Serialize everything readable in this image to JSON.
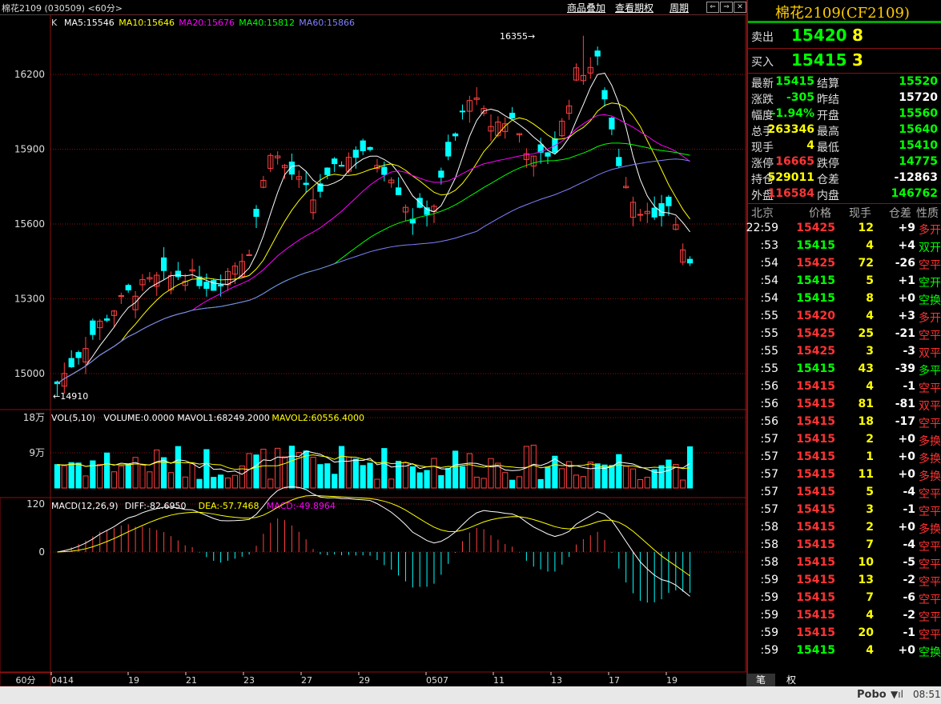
{
  "header": {
    "title": "棉花2109 (030509) <60分>",
    "btns": [
      "商品叠加",
      "查看期权",
      "周期"
    ]
  },
  "kline": {
    "ma_label": "K",
    "ma": [
      {
        "t": "MA5:15546",
        "c": "#ffffff"
      },
      {
        "t": "MA10:15646",
        "c": "#ffff00"
      },
      {
        "t": "MA20:15676",
        "c": "#ff00ff"
      },
      {
        "t": "MA40:15812",
        "c": "#00ff00"
      },
      {
        "t": "MA60:15866",
        "c": "#8080ff"
      }
    ],
    "high_label": "16355",
    "low_label": "14910",
    "y_ticks": [
      "16200",
      "15900",
      "15600",
      "15300",
      "15000"
    ]
  },
  "vol": {
    "legend": [
      {
        "t": "VOL(5,10)",
        "c": "#ffffff"
      },
      {
        "t": "VOLUME:0.0000",
        "c": "#ffffff"
      },
      {
        "t": "MAVOL1:68249.2000",
        "c": "#ffffff"
      },
      {
        "t": "MAVOL2:60556.4000",
        "c": "#ffff00"
      }
    ],
    "y_ticks": [
      "18万",
      "9万"
    ]
  },
  "macd": {
    "legend": [
      {
        "t": "MACD(12,26,9)",
        "c": "#ffffff"
      },
      {
        "t": "DIFF:-82.6950",
        "c": "#ffffff"
      },
      {
        "t": "DEA:-57.7468",
        "c": "#ffff00"
      },
      {
        "t": "MACD:-49.8964",
        "c": "#ff00ff"
      }
    ],
    "y_ticks": [
      "120",
      "0"
    ]
  },
  "x_axis": {
    "period": "60分",
    "labels": [
      "0414",
      "19",
      "21",
      "23",
      "27",
      "29",
      "0507",
      "11",
      "13",
      "17",
      "19"
    ]
  },
  "chart_data": {
    "type": "candlestick",
    "title": "棉花2109",
    "y_range": [
      14910,
      16355
    ],
    "high": 16355,
    "low": 14910,
    "last": 15415
  },
  "quote": {
    "name": "棉花2109(CF2109)",
    "sell": {
      "label": "卖出",
      "price": "15420",
      "vol": "8"
    },
    "buy": {
      "label": "买入",
      "price": "15415",
      "vol": "3"
    },
    "stats": [
      {
        "l1": "最新",
        "v1": "15415",
        "c1": "#00ff00",
        "l2": "结算",
        "v2": "15520",
        "c2": "#00ff00"
      },
      {
        "l1": "涨跌",
        "v1": "-305",
        "c1": "#00ff00",
        "l2": "昨结",
        "v2": "15720",
        "c2": "#ffffff"
      },
      {
        "l1": "幅度",
        "v1": "-1.94%",
        "c1": "#00ff00",
        "l2": "开盘",
        "v2": "15560",
        "c2": "#00ff00"
      },
      {
        "l1": "总手",
        "v1": "263346",
        "c1": "#ffff00",
        "l2": "最高",
        "v2": "15640",
        "c2": "#00ff00"
      },
      {
        "l1": "现手",
        "v1": "4",
        "c1": "#ffff00",
        "l2": "最低",
        "v2": "15410",
        "c2": "#00ff00"
      },
      {
        "l1": "涨停",
        "v1": "16665",
        "c1": "#ff3333",
        "l2": "跌停",
        "v2": "14775",
        "c2": "#00ff00"
      },
      {
        "l1": "持仓",
        "v1": "529011",
        "c1": "#ffff00",
        "l2": "仓差",
        "v2": "-12863",
        "c2": "#ffffff"
      },
      {
        "l1": "外盘",
        "v1": "116584",
        "c1": "#ff3333",
        "l2": "内盘",
        "v2": "146762",
        "c2": "#00ff00"
      }
    ],
    "tick_header": [
      "北京",
      "价格",
      "现手",
      "仓差",
      "性质"
    ],
    "ticks": [
      {
        "time": "22:59",
        "price": "15425",
        "vol": "12",
        "oi": "+9",
        "type": "多开",
        "pc": "#ff3333",
        "tc": "#ff3333"
      },
      {
        "time": ":53",
        "price": "15415",
        "vol": "4",
        "oi": "+4",
        "type": "双开",
        "pc": "#00ff00",
        "tc": "#00ff00"
      },
      {
        "time": ":54",
        "price": "15425",
        "vol": "72",
        "oi": "-26",
        "type": "空平",
        "pc": "#ff3333",
        "tc": "#ff3333"
      },
      {
        "time": ":54",
        "price": "15415",
        "vol": "5",
        "oi": "+1",
        "type": "空开",
        "pc": "#00ff00",
        "tc": "#00ff00"
      },
      {
        "time": ":54",
        "price": "15415",
        "vol": "8",
        "oi": "+0",
        "type": "空换",
        "pc": "#00ff00",
        "tc": "#00ff00"
      },
      {
        "time": ":55",
        "price": "15420",
        "vol": "4",
        "oi": "+3",
        "type": "多开",
        "pc": "#ff3333",
        "tc": "#ff3333"
      },
      {
        "time": ":55",
        "price": "15425",
        "vol": "25",
        "oi": "-21",
        "type": "空平",
        "pc": "#ff3333",
        "tc": "#ff3333"
      },
      {
        "time": ":55",
        "price": "15425",
        "vol": "3",
        "oi": "-3",
        "type": "双平",
        "pc": "#ff3333",
        "tc": "#ff3333"
      },
      {
        "time": ":55",
        "price": "15415",
        "vol": "43",
        "oi": "-39",
        "type": "多平",
        "pc": "#00ff00",
        "tc": "#00ff00"
      },
      {
        "time": ":56",
        "price": "15415",
        "vol": "4",
        "oi": "-1",
        "type": "空平",
        "pc": "#ff3333",
        "tc": "#ff3333"
      },
      {
        "time": ":56",
        "price": "15415",
        "vol": "81",
        "oi": "-81",
        "type": "双平",
        "pc": "#ff3333",
        "tc": "#ff3333"
      },
      {
        "time": ":56",
        "price": "15415",
        "vol": "18",
        "oi": "-17",
        "type": "空平",
        "pc": "#ff3333",
        "tc": "#ff3333"
      },
      {
        "time": ":57",
        "price": "15415",
        "vol": "2",
        "oi": "+0",
        "type": "多换",
        "pc": "#ff3333",
        "tc": "#ff3333"
      },
      {
        "time": ":57",
        "price": "15415",
        "vol": "1",
        "oi": "+0",
        "type": "多换",
        "pc": "#ff3333",
        "tc": "#ff3333"
      },
      {
        "time": ":57",
        "price": "15415",
        "vol": "11",
        "oi": "+0",
        "type": "多换",
        "pc": "#ff3333",
        "tc": "#ff3333"
      },
      {
        "time": ":57",
        "price": "15415",
        "vol": "5",
        "oi": "-4",
        "type": "空平",
        "pc": "#ff3333",
        "tc": "#ff3333"
      },
      {
        "time": ":57",
        "price": "15415",
        "vol": "3",
        "oi": "-1",
        "type": "空平",
        "pc": "#ff3333",
        "tc": "#ff3333"
      },
      {
        "time": ":58",
        "price": "15415",
        "vol": "2",
        "oi": "+0",
        "type": "多换",
        "pc": "#ff3333",
        "tc": "#ff3333"
      },
      {
        "time": ":58",
        "price": "15415",
        "vol": "7",
        "oi": "-4",
        "type": "空平",
        "pc": "#ff3333",
        "tc": "#ff3333"
      },
      {
        "time": ":58",
        "price": "15415",
        "vol": "10",
        "oi": "-5",
        "type": "空平",
        "pc": "#ff3333",
        "tc": "#ff3333"
      },
      {
        "time": ":59",
        "price": "15415",
        "vol": "13",
        "oi": "-2",
        "type": "空平",
        "pc": "#ff3333",
        "tc": "#ff3333"
      },
      {
        "time": ":59",
        "price": "15415",
        "vol": "7",
        "oi": "-6",
        "type": "空平",
        "pc": "#ff3333",
        "tc": "#ff3333"
      },
      {
        "time": ":59",
        "price": "15415",
        "vol": "4",
        "oi": "-2",
        "type": "空平",
        "pc": "#ff3333",
        "tc": "#ff3333"
      },
      {
        "time": ":59",
        "price": "15415",
        "vol": "20",
        "oi": "-1",
        "type": "空平",
        "pc": "#ff3333",
        "tc": "#ff3333"
      },
      {
        "time": ":59",
        "price": "15415",
        "vol": "4",
        "oi": "+0",
        "type": "空换",
        "pc": "#00ff00",
        "tc": "#00ff00"
      }
    ],
    "tabs": [
      "笔",
      "权"
    ]
  },
  "status": {
    "brand": "Pobo",
    "time": "08:51"
  }
}
